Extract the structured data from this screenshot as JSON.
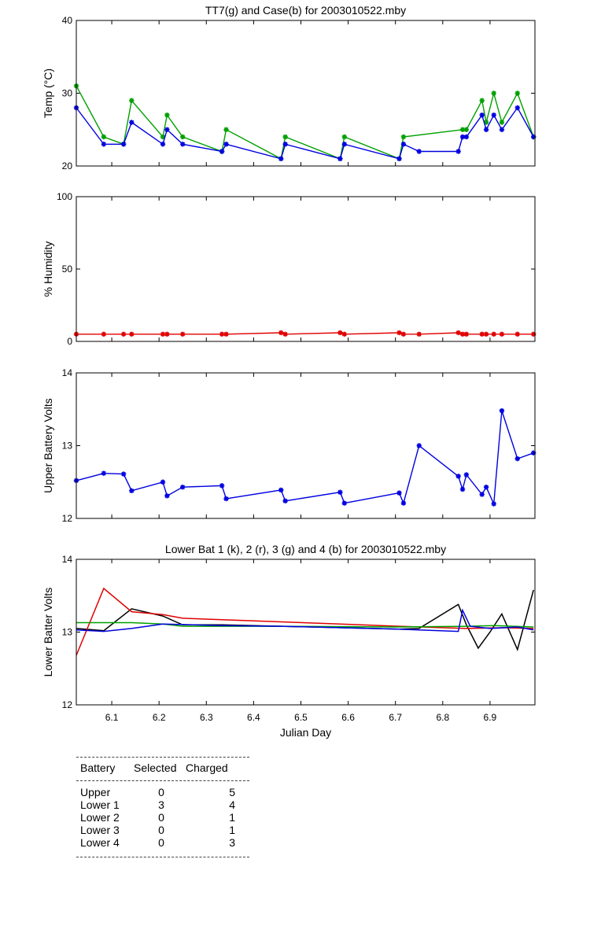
{
  "chart_data": [
    {
      "type": "line",
      "title": "TT7(g) and Case(b) for 2003010522.mby",
      "ylabel": "Temp  (°C)",
      "xlim": [
        6.025,
        6.995
      ],
      "ylim": [
        20,
        40
      ],
      "yticks": [
        20,
        30,
        40
      ],
      "series": [
        {
          "color": "#00a000",
          "marker": "*",
          "x": [
            6.025,
            6.083,
            6.125,
            6.142,
            6.208,
            6.217,
            6.25,
            6.333,
            6.342,
            6.458,
            6.467,
            6.583,
            6.592,
            6.708,
            6.717,
            6.842,
            6.85,
            6.883,
            6.892,
            6.908,
            6.925,
            6.958,
            6.992
          ],
          "y": [
            31,
            24,
            23,
            29,
            24,
            27,
            24,
            22,
            25,
            21,
            24,
            21,
            24,
            21,
            24,
            25,
            25,
            29,
            26,
            30,
            26,
            30,
            24
          ]
        },
        {
          "color": "#0000e0",
          "marker": "*",
          "x": [
            6.025,
            6.083,
            6.125,
            6.142,
            6.208,
            6.217,
            6.25,
            6.333,
            6.342,
            6.458,
            6.467,
            6.583,
            6.592,
            6.708,
            6.717,
            6.75,
            6.833,
            6.842,
            6.85,
            6.883,
            6.892,
            6.908,
            6.925,
            6.958,
            6.992
          ],
          "y": [
            28,
            23,
            23,
            26,
            23,
            25,
            23,
            22,
            23,
            21,
            23,
            21,
            23,
            21,
            23,
            22,
            22,
            24,
            24,
            27,
            25,
            27,
            25,
            28,
            24
          ]
        }
      ]
    },
    {
      "type": "line",
      "title": "",
      "ylabel": "% Humidity",
      "xlim": [
        6.025,
        6.995
      ],
      "ylim": [
        0,
        100
      ],
      "yticks": [
        0,
        50,
        100
      ],
      "series": [
        {
          "color": "#e00000",
          "marker": "*",
          "x": [
            6.025,
            6.083,
            6.125,
            6.142,
            6.208,
            6.217,
            6.25,
            6.333,
            6.342,
            6.458,
            6.467,
            6.583,
            6.592,
            6.708,
            6.717,
            6.75,
            6.833,
            6.842,
            6.85,
            6.883,
            6.892,
            6.908,
            6.925,
            6.958,
            6.992
          ],
          "y": [
            5,
            5,
            5,
            5,
            5,
            5,
            5,
            5,
            5,
            6,
            5,
            6,
            5,
            6,
            5,
            5,
            6,
            5,
            5,
            5,
            5,
            5,
            5,
            5,
            5
          ]
        }
      ]
    },
    {
      "type": "line",
      "title": "",
      "ylabel": "Upper Battery Volts",
      "xlim": [
        6.025,
        6.995
      ],
      "ylim": [
        12,
        14
      ],
      "yticks": [
        12,
        13,
        14
      ],
      "series": [
        {
          "color": "#0000e0",
          "marker": "*",
          "x": [
            6.025,
            6.083,
            6.125,
            6.142,
            6.208,
            6.217,
            6.25,
            6.333,
            6.342,
            6.458,
            6.467,
            6.583,
            6.592,
            6.708,
            6.717,
            6.75,
            6.833,
            6.842,
            6.85,
            6.883,
            6.892,
            6.908,
            6.925,
            6.958,
            6.992
          ],
          "y": [
            12.52,
            12.62,
            12.61,
            12.38,
            12.5,
            12.31,
            12.43,
            12.45,
            12.27,
            12.39,
            12.24,
            12.36,
            12.21,
            12.35,
            12.21,
            13.0,
            12.58,
            12.4,
            12.6,
            12.33,
            12.43,
            12.2,
            13.48,
            12.82,
            12.9
          ]
        }
      ]
    },
    {
      "type": "line",
      "title": "Lower Bat 1 (k), 2 (r), 3 (g) and 4 (b) for 2003010522.mby",
      "ylabel": "Lower Batter Volts",
      "xlabel": "Julian Day",
      "xlim": [
        6.025,
        6.995
      ],
      "ylim": [
        12,
        14
      ],
      "yticks": [
        12,
        13,
        14
      ],
      "xticks": [
        6.1,
        6.2,
        6.3,
        6.4,
        6.5,
        6.6,
        6.7,
        6.8,
        6.9
      ],
      "series": [
        {
          "color": "#000000",
          "x": [
            6.025,
            6.083,
            6.142,
            6.208,
            6.25,
            6.333,
            6.458,
            6.583,
            6.708,
            6.75,
            6.833,
            6.85,
            6.875,
            6.9,
            6.925,
            6.958,
            6.992
          ],
          "y": [
            13.05,
            13.02,
            13.32,
            13.22,
            13.1,
            13.1,
            13.08,
            13.06,
            13.04,
            13.05,
            13.38,
            13.1,
            12.78,
            13.0,
            13.25,
            12.76,
            13.58
          ]
        },
        {
          "color": "#e00000",
          "x": [
            6.025,
            6.083,
            6.142,
            6.208,
            6.25,
            6.333,
            6.458,
            6.583,
            6.708,
            6.85,
            6.925,
            6.992
          ],
          "y": [
            12.68,
            13.6,
            13.28,
            13.24,
            13.19,
            13.17,
            13.14,
            13.11,
            13.08,
            13.05,
            13.06,
            13.05
          ]
        },
        {
          "color": "#00a000",
          "x": [
            6.025,
            6.142,
            6.208,
            6.25,
            6.458,
            6.708,
            6.85,
            6.908,
            6.992
          ],
          "y": [
            13.13,
            13.13,
            13.11,
            13.08,
            13.08,
            13.07,
            13.08,
            13.09,
            13.07
          ]
        },
        {
          "color": "#0000e0",
          "x": [
            6.025,
            6.083,
            6.142,
            6.208,
            6.333,
            6.458,
            6.583,
            6.708,
            6.833,
            6.842,
            6.858,
            6.9,
            6.958,
            6.992
          ],
          "y": [
            13.03,
            13.01,
            13.05,
            13.11,
            13.09,
            13.08,
            13.06,
            13.04,
            13.01,
            13.3,
            13.08,
            13.05,
            13.07,
            13.03
          ]
        }
      ]
    }
  ],
  "battery_table": {
    "headers": [
      "Battery",
      "Selected",
      "Charged"
    ],
    "rows": [
      [
        "Upper",
        "0",
        "5"
      ],
      [
        "Lower 1",
        "3",
        "4"
      ],
      [
        "Lower 2",
        "0",
        "1"
      ],
      [
        "Lower 3",
        "0",
        "1"
      ],
      [
        "Lower 4",
        "0",
        "3"
      ]
    ]
  }
}
